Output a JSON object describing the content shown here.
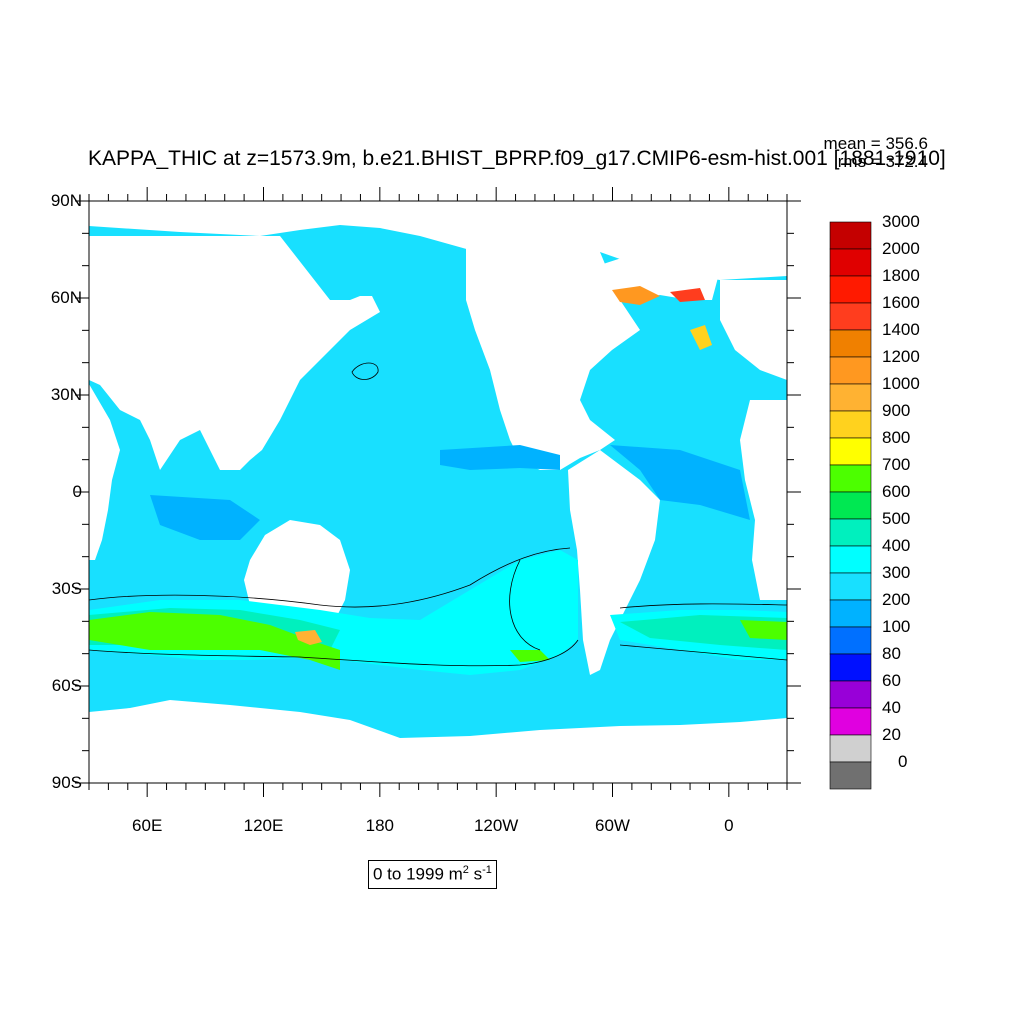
{
  "chart_data": {
    "type": "contour-map",
    "title": "KAPPA_THIC at z=1573.9m, b.e21.BHIST_BPRP.f09_g17.CMIP6-esm-hist.001 [1881-1910]",
    "stats": {
      "mean": "mean = 356.6",
      "rms": "rms = 372.4"
    },
    "range_label": {
      "prefix": "0 to 1999 m",
      "sup1": "2",
      "mid": " s",
      "sup2": "-1"
    },
    "y_ticks": [
      "90N",
      "60N",
      "30N",
      "0",
      "30S",
      "60S",
      "90S"
    ],
    "x_ticks": [
      "60E",
      "120E",
      "180",
      "120W",
      "60W",
      "0"
    ],
    "lon_range": [
      30,
      390
    ],
    "lat_range": [
      -90,
      90
    ],
    "colorbar": {
      "labels": [
        "3000",
        "2000",
        "1800",
        "1600",
        "1400",
        "1200",
        "1000",
        "900",
        "800",
        "700",
        "600",
        "500",
        "400",
        "300",
        "200",
        "100",
        "80",
        "60",
        "40",
        "20",
        "0"
      ],
      "colors": [
        "#c40000",
        "#e00000",
        "#ff1a00",
        "#ff3d1e",
        "#f08000",
        "#ff9820",
        "#ffb232",
        "#ffd21e",
        "#ffff00",
        "#4cff00",
        "#00e852",
        "#00f0be",
        "#00ffff",
        "#18e0ff",
        "#00b2ff",
        "#0070ff",
        "#0010ff",
        "#9800d8",
        "#e000e0",
        "#d0d0d0",
        "#707070"
      ]
    }
  }
}
